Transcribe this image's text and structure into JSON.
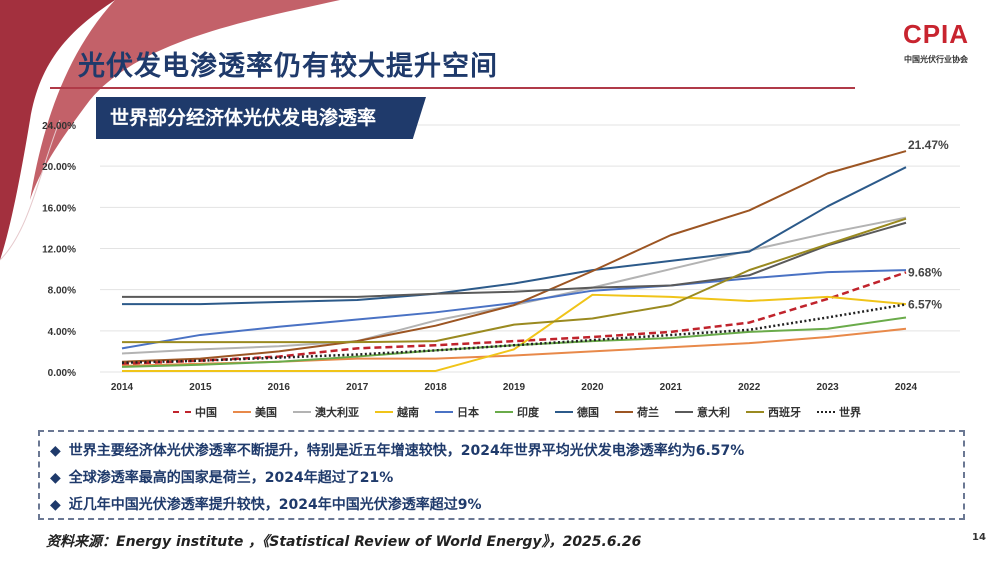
{
  "header": {
    "title": "光伏发电渗透率仍有较大提升空间",
    "subtitle": "世界部分经济体光伏发电渗透率",
    "logo_text": "CPIA",
    "logo_org": "中国光伏行业协会",
    "accent_color": "#1f3a6b",
    "brand_red": "#b03a48"
  },
  "chart_data": {
    "type": "line",
    "title": "世界部分经济体光伏发电渗透率",
    "x": [
      "2014",
      "2015",
      "2016",
      "2017",
      "2018",
      "2019",
      "2020",
      "2021",
      "2022",
      "2023",
      "2024"
    ],
    "ylim": [
      0,
      24
    ],
    "yticks": [
      "0.00%",
      "4.00%",
      "8.00%",
      "12.00%",
      "16.00%",
      "20.00%",
      "24.00%"
    ],
    "ytick_values": [
      0,
      4,
      8,
      12,
      16,
      20,
      24
    ],
    "grid": true,
    "legend_placement": "bottom",
    "series": [
      {
        "name": "中国",
        "color": "#c0232c",
        "style": "dashed",
        "values": [
          0.8,
          1.1,
          1.5,
          2.3,
          2.6,
          3.0,
          3.4,
          3.9,
          4.8,
          7.1,
          9.68
        ]
      },
      {
        "name": "美国",
        "color": "#e8894a",
        "style": "solid",
        "values": [
          0.6,
          0.8,
          1.0,
          1.3,
          1.3,
          1.6,
          2.0,
          2.4,
          2.8,
          3.4,
          4.2
        ]
      },
      {
        "name": "澳大利亚",
        "color": "#b3b3b3",
        "style": "solid",
        "values": [
          1.8,
          2.2,
          2.5,
          3.0,
          5.0,
          6.5,
          8.2,
          10.0,
          11.8,
          13.5,
          15.0
        ]
      },
      {
        "name": "越南",
        "color": "#f0c419",
        "style": "solid",
        "values": [
          0.1,
          0.1,
          0.1,
          0.1,
          0.1,
          2.2,
          7.5,
          7.3,
          6.9,
          7.3,
          6.6
        ]
      },
      {
        "name": "日本",
        "color": "#4a72c4",
        "style": "solid",
        "values": [
          2.3,
          3.6,
          4.4,
          5.1,
          5.8,
          6.7,
          7.9,
          8.4,
          9.1,
          9.7,
          9.9
        ]
      },
      {
        "name": "印度",
        "color": "#6aab4a",
        "style": "solid",
        "values": [
          0.5,
          0.7,
          1.0,
          1.5,
          2.1,
          2.6,
          3.0,
          3.3,
          3.9,
          4.2,
          5.3
        ]
      },
      {
        "name": "德国",
        "color": "#2c5a8a",
        "style": "solid",
        "values": [
          6.6,
          6.6,
          6.8,
          7.0,
          7.6,
          8.6,
          9.9,
          10.8,
          11.7,
          16.1,
          19.9
        ]
      },
      {
        "name": "荷兰",
        "color": "#9c5523",
        "style": "solid",
        "values": [
          1.0,
          1.3,
          2.0,
          3.0,
          4.5,
          6.5,
          9.8,
          13.3,
          15.7,
          19.3,
          21.47
        ]
      },
      {
        "name": "意大利",
        "color": "#5a5a5a",
        "style": "solid",
        "values": [
          7.3,
          7.3,
          7.3,
          7.3,
          7.6,
          7.8,
          8.2,
          8.4,
          9.4,
          12.3,
          14.5
        ]
      },
      {
        "name": "西班牙",
        "color": "#9a8a20",
        "style": "solid",
        "values": [
          2.9,
          2.9,
          2.9,
          2.9,
          3.0,
          4.6,
          5.2,
          6.5,
          9.9,
          12.4,
          14.9
        ]
      },
      {
        "name": "世界",
        "color": "#222222",
        "style": "dotted",
        "values": [
          0.9,
          1.1,
          1.4,
          1.7,
          2.1,
          2.6,
          3.1,
          3.6,
          4.1,
          5.3,
          6.57
        ]
      }
    ],
    "annotations": [
      {
        "text": "21.47%",
        "series": "荷兰",
        "x": "2024"
      },
      {
        "text": "9.68%",
        "series": "中国",
        "x": "2024"
      },
      {
        "text": "6.57%",
        "series": "世界",
        "x": "2024"
      }
    ]
  },
  "notes": [
    "世界主要经济体光伏渗透率不断提升，特别是近五年增速较快，2024年世界平均光伏发电渗透率约为6.57%",
    "全球渗透率最高的国家是荷兰，2024年超过了21%",
    "近几年中国光伏渗透率提升较快，2024年中国光伏渗透率超过9%"
  ],
  "note_bullet": "◆",
  "source": "资料来源：Energy institute ，《Statistical Review of World Energy》，2025.6.26",
  "page_number": "14"
}
